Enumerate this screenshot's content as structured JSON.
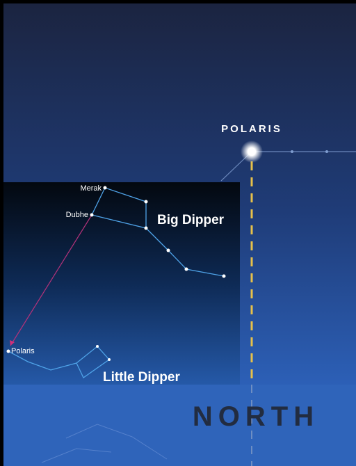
{
  "labels": {
    "polaris_main": "POLARIS",
    "merak": "Merak",
    "dubhe": "Dubhe",
    "big_dipper": "Big Dipper",
    "polaris_small": "Polaris",
    "little_dipper": "Little Dipper",
    "north": "NORTH"
  }
}
